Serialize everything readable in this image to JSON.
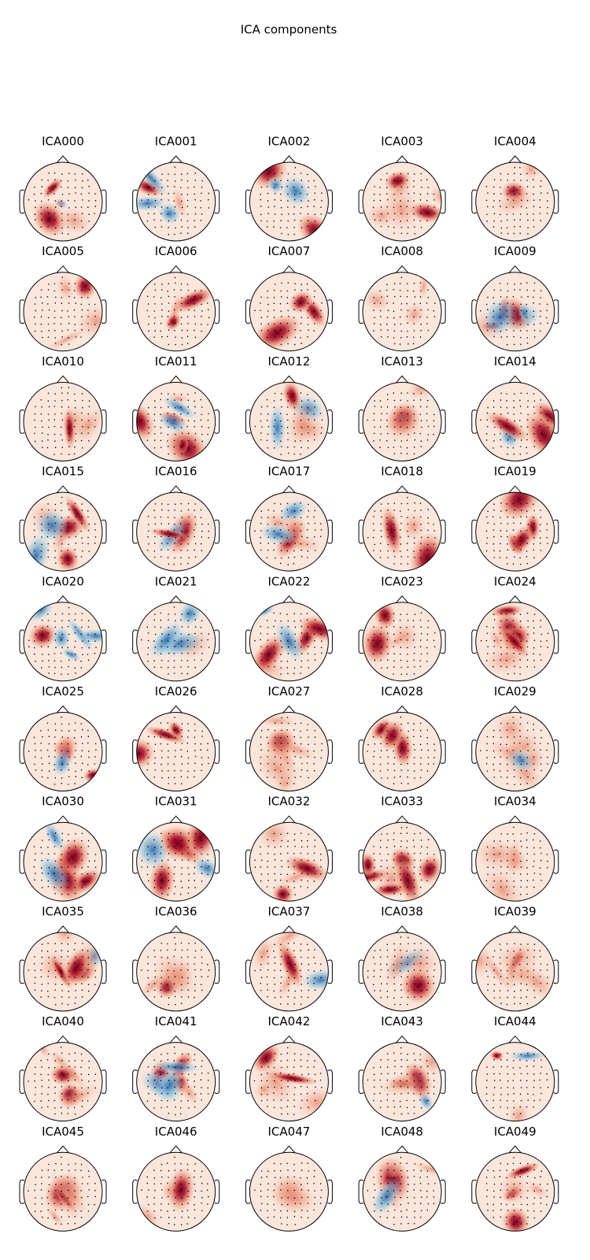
{
  "title": "ICA components",
  "components": [
    "ICA000",
    "ICA001",
    "ICA002",
    "ICA003",
    "ICA004",
    "ICA005",
    "ICA006",
    "ICA007",
    "ICA008",
    "ICA009",
    "ICA010",
    "ICA011",
    "ICA012",
    "ICA013",
    "ICA014",
    "ICA015",
    "ICA016",
    "ICA017",
    "ICA018",
    "ICA019",
    "ICA020",
    "ICA021",
    "ICA022",
    "ICA023",
    "ICA024",
    "ICA025",
    "ICA026",
    "ICA027",
    "ICA028",
    "ICA029",
    "ICA030",
    "ICA031",
    "ICA032",
    "ICA033",
    "ICA034",
    "ICA035",
    "ICA036",
    "ICA037",
    "ICA038",
    "ICA039",
    "ICA040",
    "ICA041",
    "ICA042",
    "ICA043",
    "ICA044",
    "ICA045",
    "ICA046",
    "ICA047",
    "ICA048",
    "ICA049"
  ]
}
